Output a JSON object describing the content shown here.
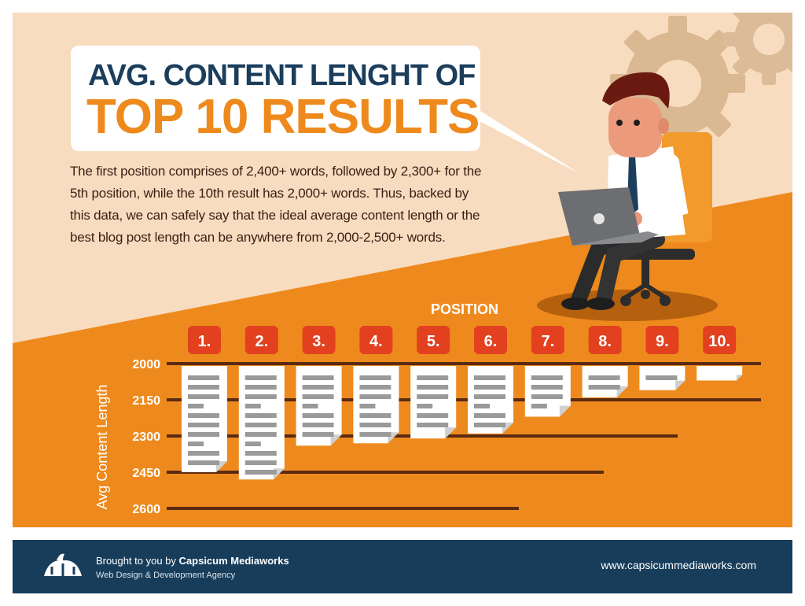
{
  "title": {
    "line1": "AVG. CONTENT LENGHT OF",
    "line2": "TOP 10 RESULTS"
  },
  "description": "The first position comprises of 2,400+ words, followed by 2,300+ for the 5th position, while the 10th result has 2,000+ words. Thus, backed by this data, we can safely say that the ideal average content length or the best blog post length can be anywhere from 2,000-2,500+ words.",
  "colors": {
    "cream": "#f7dcc0",
    "orange": "#ee8a1d",
    "navy": "#173d5b",
    "badge": "#e2401f",
    "gridline": "#5b2a12"
  },
  "icons": [
    "gear-icon",
    "businessman-illustration",
    "laptop-icon",
    "document-icon",
    "logo-icon"
  ],
  "chart_data": {
    "type": "bar",
    "orientation": "vertical-downward",
    "xlabel": "POSITION",
    "ylabel": "Avg Content Length",
    "categories": [
      "1.",
      "2.",
      "3.",
      "4.",
      "5.",
      "6.",
      "7.",
      "8.",
      "9.",
      "10."
    ],
    "values": [
      2450,
      2480,
      2340,
      2330,
      2310,
      2290,
      2220,
      2140,
      2110,
      2070
    ],
    "y_ticks": [
      "2000",
      "2150",
      "2300",
      "2450",
      "2600"
    ],
    "ylim": [
      2000,
      2600
    ],
    "y_reversed": true,
    "grid": true
  },
  "footer": {
    "brought_by": "Brought to you by",
    "company": "Capsicum Mediaworks",
    "tagline": "Web Design & Development Agency",
    "url": "www.capsicummediaworks.com"
  }
}
